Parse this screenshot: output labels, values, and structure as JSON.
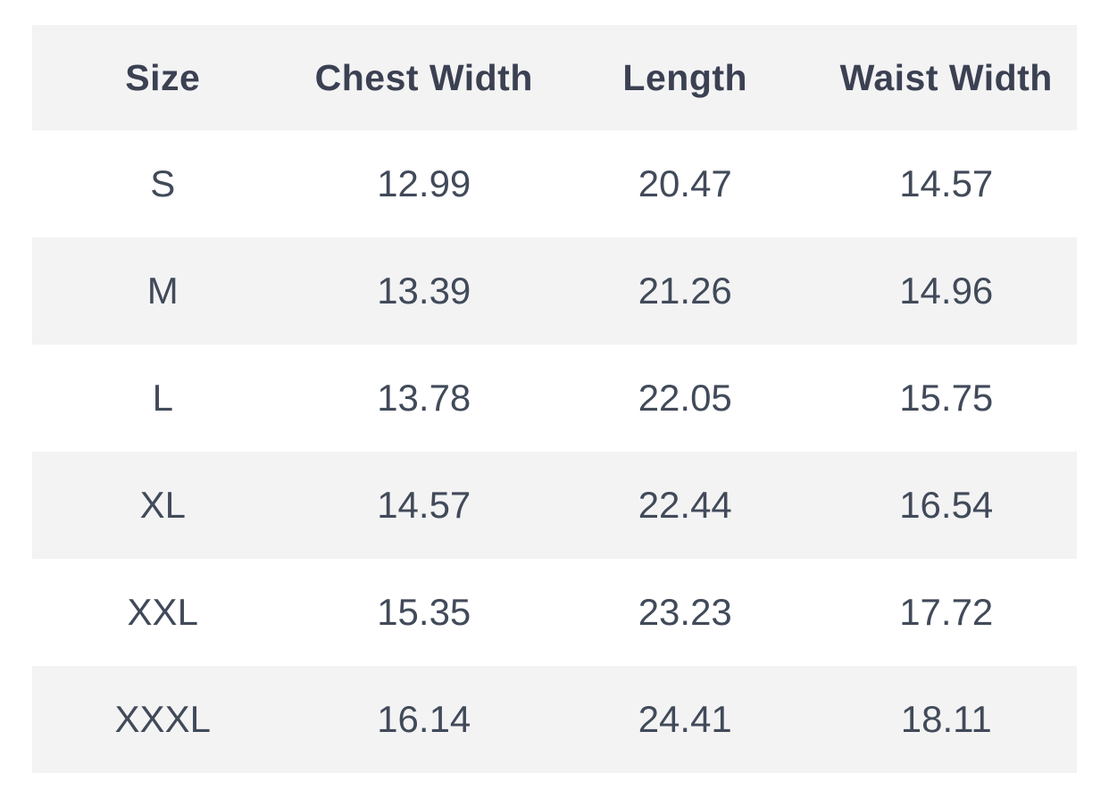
{
  "colors": {
    "page_bg": "#ffffff",
    "stripe_bg": "#f3f3f4",
    "header_text": "#3b4152",
    "body_text": "#414a59"
  },
  "size_chart": {
    "headers": {
      "size": "Size",
      "chest_width": "Chest Width",
      "length": "Length",
      "waist_width": "Waist Width"
    },
    "rows": [
      {
        "size": "S",
        "chest_width": "12.99",
        "length": "20.47",
        "waist_width": "14.57"
      },
      {
        "size": "M",
        "chest_width": "13.39",
        "length": "21.26",
        "waist_width": "14.96"
      },
      {
        "size": "L",
        "chest_width": "13.78",
        "length": "22.05",
        "waist_width": "15.75"
      },
      {
        "size": "XL",
        "chest_width": "14.57",
        "length": "22.44",
        "waist_width": "16.54"
      },
      {
        "size": "XXL",
        "chest_width": "15.35",
        "length": "23.23",
        "waist_width": "17.72"
      },
      {
        "size": "XXXL",
        "chest_width": "16.14",
        "length": "24.41",
        "waist_width": "18.11"
      }
    ]
  },
  "chart_data": {
    "type": "table",
    "title": "",
    "columns": [
      "Size",
      "Chest Width",
      "Length",
      "Waist Width"
    ],
    "rows": [
      [
        "S",
        12.99,
        20.47,
        14.57
      ],
      [
        "M",
        13.39,
        21.26,
        14.96
      ],
      [
        "L",
        13.78,
        22.05,
        15.75
      ],
      [
        "XL",
        14.57,
        22.44,
        16.54
      ],
      [
        "XXL",
        15.35,
        23.23,
        17.72
      ],
      [
        "XXXL",
        16.14,
        24.41,
        18.11
      ]
    ],
    "layout": {
      "header_background": "#f3f3f4",
      "zebra_striping": true,
      "text_alignment": "center",
      "grid": false
    }
  }
}
